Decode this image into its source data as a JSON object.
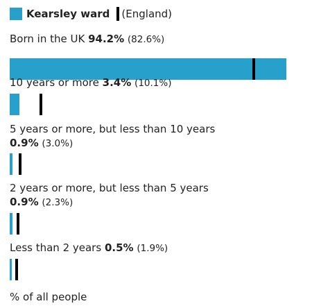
{
  "legend": {
    "primary": "Kearsley ward",
    "reference": "(England)"
  },
  "colors": {
    "bar": "#27a0cc",
    "reference": "#000000"
  },
  "chart_data": {
    "type": "bar",
    "orientation": "horizontal",
    "categories": [
      "Born in the UK",
      "10 years or more",
      "5 years or more, but less than 10 years",
      "2 years or more, but less than 5 years",
      "Less than 2 years"
    ],
    "series": [
      {
        "name": "Kearsley ward",
        "values": [
          94.2,
          3.4,
          0.9,
          0.9,
          0.5
        ],
        "labels": [
          "94.2%",
          "3.4%",
          "0.9%",
          "0.9%",
          "0.5%"
        ]
      },
      {
        "name": "England",
        "values": [
          82.6,
          10.1,
          3.0,
          2.3,
          1.9
        ],
        "labels": [
          "(82.6%)",
          "(10.1%)",
          "(3.0%)",
          "(2.3%)",
          "(1.9%)"
        ]
      }
    ],
    "xlim": [
      0,
      100
    ],
    "xlabel": "% of all people",
    "legend_position": "top-left",
    "grid": false
  }
}
